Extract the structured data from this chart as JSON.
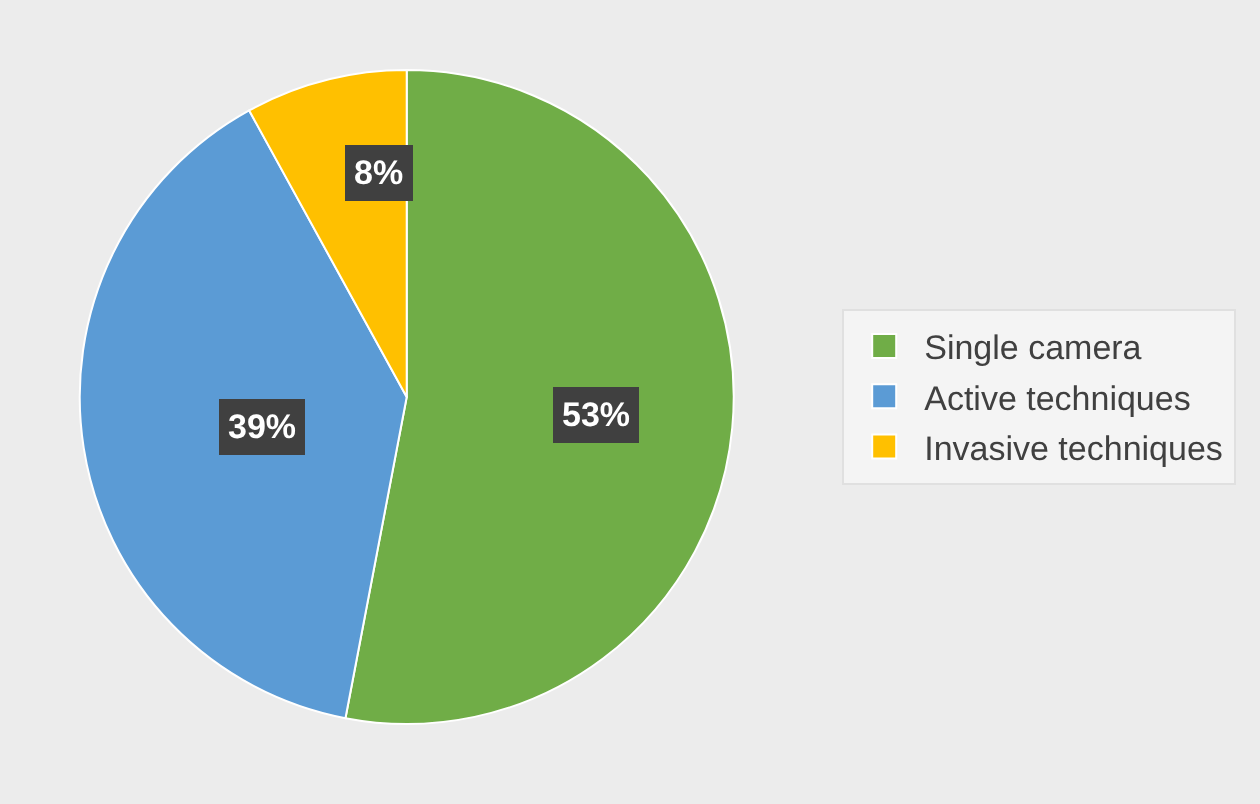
{
  "chart_data": {
    "type": "pie",
    "categories": [
      "Single camera",
      "Active techniques",
      "Invasive techniques"
    ],
    "values": [
      53,
      39,
      8
    ],
    "colors": [
      "#70ad47",
      "#5b9bd5",
      "#ffc000"
    ],
    "value_labels": [
      "53%",
      "39%",
      "8%"
    ],
    "legend": "right"
  }
}
